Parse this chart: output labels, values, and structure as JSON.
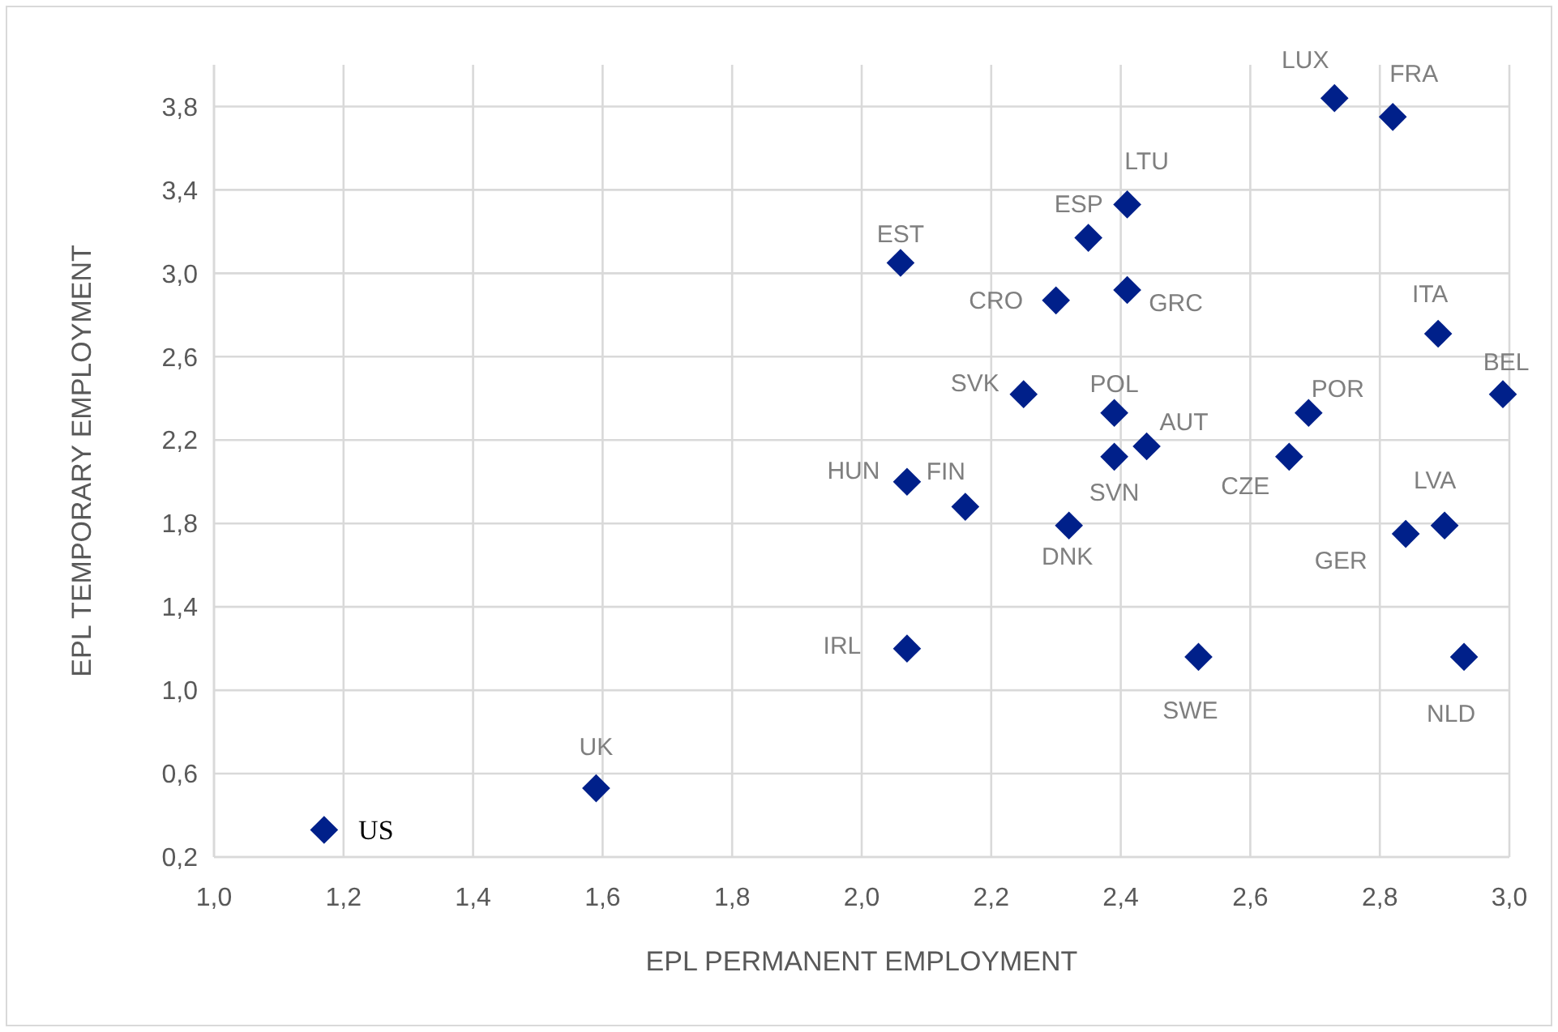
{
  "chart_data": {
    "type": "scatter",
    "xlabel": "EPL PERMANENT EMPLOYMENT",
    "ylabel": "EPL TEMPORARY EMPLOYMENT",
    "x": [
      1.17,
      1.59,
      2.07,
      2.52,
      2.93,
      2.84,
      2.9,
      2.32,
      2.16,
      2.07,
      2.39,
      2.44,
      2.66,
      2.69,
      2.39,
      2.25,
      2.99,
      2.89,
      2.3,
      2.41,
      2.06,
      2.35,
      2.41,
      2.73,
      2.82
    ],
    "series": [
      {
        "color": "#00208a",
        "values": [
          0.33,
          0.53,
          1.2,
          1.16,
          1.16,
          1.75,
          1.79,
          1.79,
          1.88,
          2.0,
          2.12,
          2.17,
          2.12,
          2.33,
          2.33,
          2.42,
          2.42,
          2.71,
          2.87,
          2.92,
          3.05,
          3.17,
          3.33,
          3.84,
          3.75
        ]
      }
    ],
    "marker": "diamond",
    "grid": true,
    "xlim": [
      1.0,
      3.0
    ],
    "xticks": [
      {
        "value": 1.0,
        "label": "1,0"
      },
      {
        "value": 1.2,
        "label": "1,2"
      },
      {
        "value": 1.4,
        "label": "1,4"
      },
      {
        "value": 1.6,
        "label": "1,6"
      },
      {
        "value": 1.8,
        "label": "1,8"
      },
      {
        "value": 2.0,
        "label": "2,0"
      },
      {
        "value": 2.2,
        "label": "2,2"
      },
      {
        "value": 2.4,
        "label": "2,4"
      },
      {
        "value": 2.6,
        "label": "2,6"
      },
      {
        "value": 2.8,
        "label": "2,8"
      },
      {
        "value": 3.0,
        "label": "3,0"
      }
    ],
    "ylim": [
      0.2,
      4.0
    ],
    "yticks": [
      {
        "value": 0.2,
        "label": "0,2"
      },
      {
        "value": 0.6,
        "label": "0,6"
      },
      {
        "value": 1.0,
        "label": "1,0"
      },
      {
        "value": 1.4,
        "label": "1,4"
      },
      {
        "value": 1.8,
        "label": "1,8"
      },
      {
        "value": 2.2,
        "label": "2,2"
      },
      {
        "value": 2.6,
        "label": "2,6"
      },
      {
        "value": 3.0,
        "label": "3,0"
      },
      {
        "value": 3.4,
        "label": "3,4"
      },
      {
        "value": 3.8,
        "label": "3,8"
      }
    ],
    "annotations": [
      {
        "text": "US",
        "x": 1.17,
        "y": 0.33
      },
      {
        "text": "UK",
        "x": 1.59,
        "y": 0.53
      },
      {
        "text": "IRL",
        "x": 2.07,
        "y": 1.2
      },
      {
        "text": "SWE",
        "x": 2.52,
        "y": 1.16
      },
      {
        "text": "NLD",
        "x": 2.93,
        "y": 1.16
      },
      {
        "text": "GER",
        "x": 2.84,
        "y": 1.75
      },
      {
        "text": "LVA",
        "x": 2.9,
        "y": 1.79
      },
      {
        "text": "DNK",
        "x": 2.32,
        "y": 1.79
      },
      {
        "text": "FIN",
        "x": 2.16,
        "y": 1.88
      },
      {
        "text": "HUN",
        "x": 2.07,
        "y": 2.0
      },
      {
        "text": "SVN",
        "x": 2.39,
        "y": 2.12
      },
      {
        "text": "AUT",
        "x": 2.44,
        "y": 2.17
      },
      {
        "text": "CZE",
        "x": 2.66,
        "y": 2.12
      },
      {
        "text": "POR",
        "x": 2.69,
        "y": 2.33
      },
      {
        "text": "POL",
        "x": 2.39,
        "y": 2.33
      },
      {
        "text": "SVK",
        "x": 2.25,
        "y": 2.42
      },
      {
        "text": "BEL",
        "x": 2.99,
        "y": 2.42
      },
      {
        "text": "ITA",
        "x": 2.89,
        "y": 2.71
      },
      {
        "text": "CRO",
        "x": 2.3,
        "y": 2.87
      },
      {
        "text": "GRC",
        "x": 2.41,
        "y": 2.92
      },
      {
        "text": "EST",
        "x": 2.06,
        "y": 3.05
      },
      {
        "text": "ESP",
        "x": 2.35,
        "y": 3.17
      },
      {
        "text": "LTU",
        "x": 2.41,
        "y": 3.33
      },
      {
        "text": "LUX",
        "x": 2.73,
        "y": 3.84
      },
      {
        "text": "FRA",
        "x": 2.82,
        "y": 3.75
      }
    ]
  }
}
